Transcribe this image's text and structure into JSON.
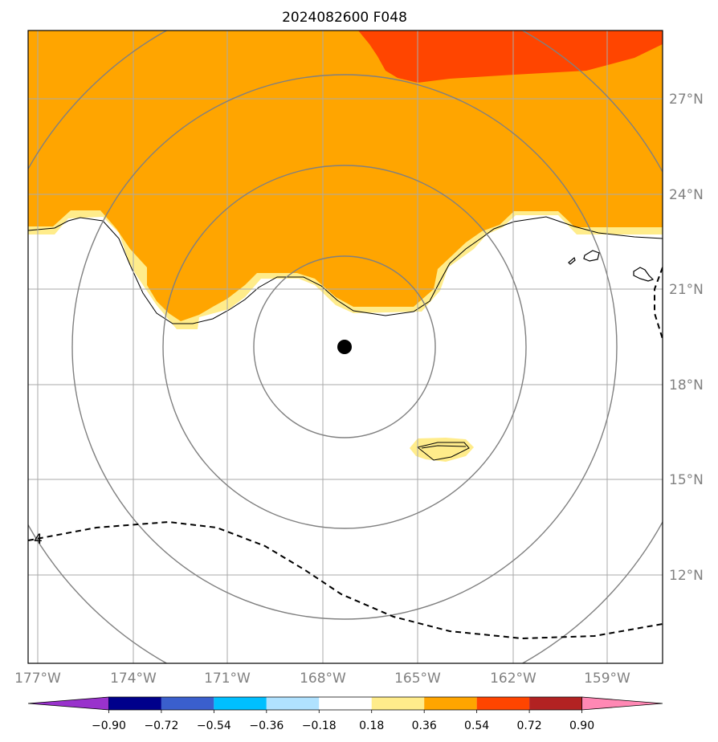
{
  "title": "2024082600 F048",
  "storm_marker": "black-filled-circle",
  "contour_label": "4",
  "lon_labels": [
    "177°W",
    "174°W",
    "171°W",
    "168°W",
    "165°W",
    "162°W",
    "159°W"
  ],
  "lat_labels": [
    "27°N",
    "24°N",
    "21°N",
    "18°N",
    "15°N",
    "12°N"
  ],
  "colorbar": {
    "ticks": [
      "−0.90",
      "−0.72",
      "−0.54",
      "−0.36",
      "−0.18",
      "0.18",
      "0.36",
      "0.54",
      "0.72",
      "0.90"
    ],
    "colors": [
      "#9932cc",
      "#00008b",
      "#3a5fcd",
      "#00bfff",
      "#b0e2ff",
      "#ffffff",
      "#ffec8b",
      "#ffa500",
      "#ff4500",
      "#b22222",
      "#ff88b4"
    ]
  },
  "colors": {
    "band_018_036": "#ffec8b",
    "band_036_054": "#ffa500",
    "band_054_072": "#ff4500",
    "grid": "#aaaaaa",
    "range_rings": "#808080"
  }
}
